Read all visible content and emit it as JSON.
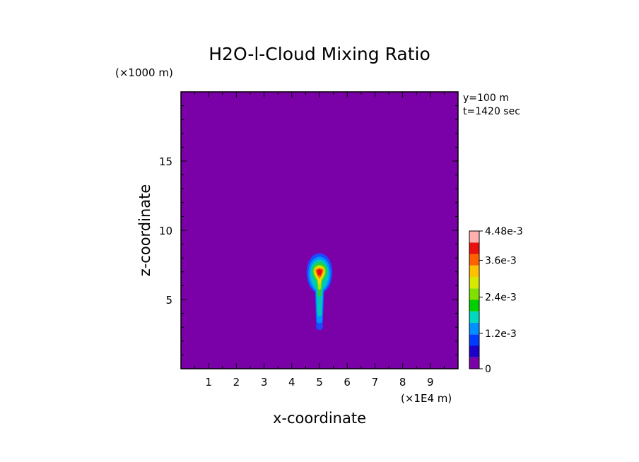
{
  "chart_data": {
    "type": "heatmap",
    "title": "H2O-l-Cloud Mixing Ratio",
    "xlabel": "x-coordinate",
    "ylabel": "z-coordinate",
    "x_unit": "(×1E4 m)",
    "y_unit": "(×1000 m)",
    "annotation_y": "y=100 m",
    "annotation_t": "t=1420 sec",
    "xlim": [
      0,
      10
    ],
    "ylim": [
      0,
      20
    ],
    "x_ticks": [
      "1",
      "2",
      "3",
      "4",
      "5",
      "6",
      "7",
      "8",
      "9"
    ],
    "y_ticks": [
      "5",
      "10",
      "15"
    ],
    "background_color": "#7a00a8",
    "cloud": {
      "x_center": 5.0,
      "layers": [
        {
          "color": "#1a4bff",
          "z_bottom": 2.8,
          "z_top": 8.35,
          "half_width": 0.14
        },
        {
          "color": "#0093ff",
          "z_bottom": 3.3,
          "z_top": 8.1,
          "half_width": 0.12
        },
        {
          "color": "#00c8b8",
          "z_bottom": 3.8,
          "z_top": 7.9,
          "half_width": 0.1
        },
        {
          "color": "#28d040",
          "z_bottom": 5.2,
          "z_top": 7.7,
          "half_width": 0.08
        },
        {
          "color": "#a8e800",
          "z_bottom": 5.7,
          "z_top": 7.5,
          "half_width": 0.065
        },
        {
          "color": "#ffd500",
          "z_bottom": 6.1,
          "z_top": 7.4,
          "half_width": 0.055
        },
        {
          "color": "#ff7a00",
          "z_bottom": 6.5,
          "z_top": 7.3,
          "half_width": 0.045
        },
        {
          "color": "#e81010",
          "z_bottom": 6.7,
          "z_top": 7.2,
          "half_width": 0.03
        }
      ]
    },
    "colorbar": {
      "levels": [
        "0",
        "1.2e-3",
        "2.4e-3",
        "3.6e-3",
        "4.48e-3"
      ],
      "colors": [
        "#7a00a8",
        "#1a00c8",
        "#003cff",
        "#0090ff",
        "#00d8c0",
        "#00d000",
        "#80e000",
        "#d8e800",
        "#ffc000",
        "#ff6000",
        "#e81010",
        "#ffb0b0"
      ]
    }
  }
}
